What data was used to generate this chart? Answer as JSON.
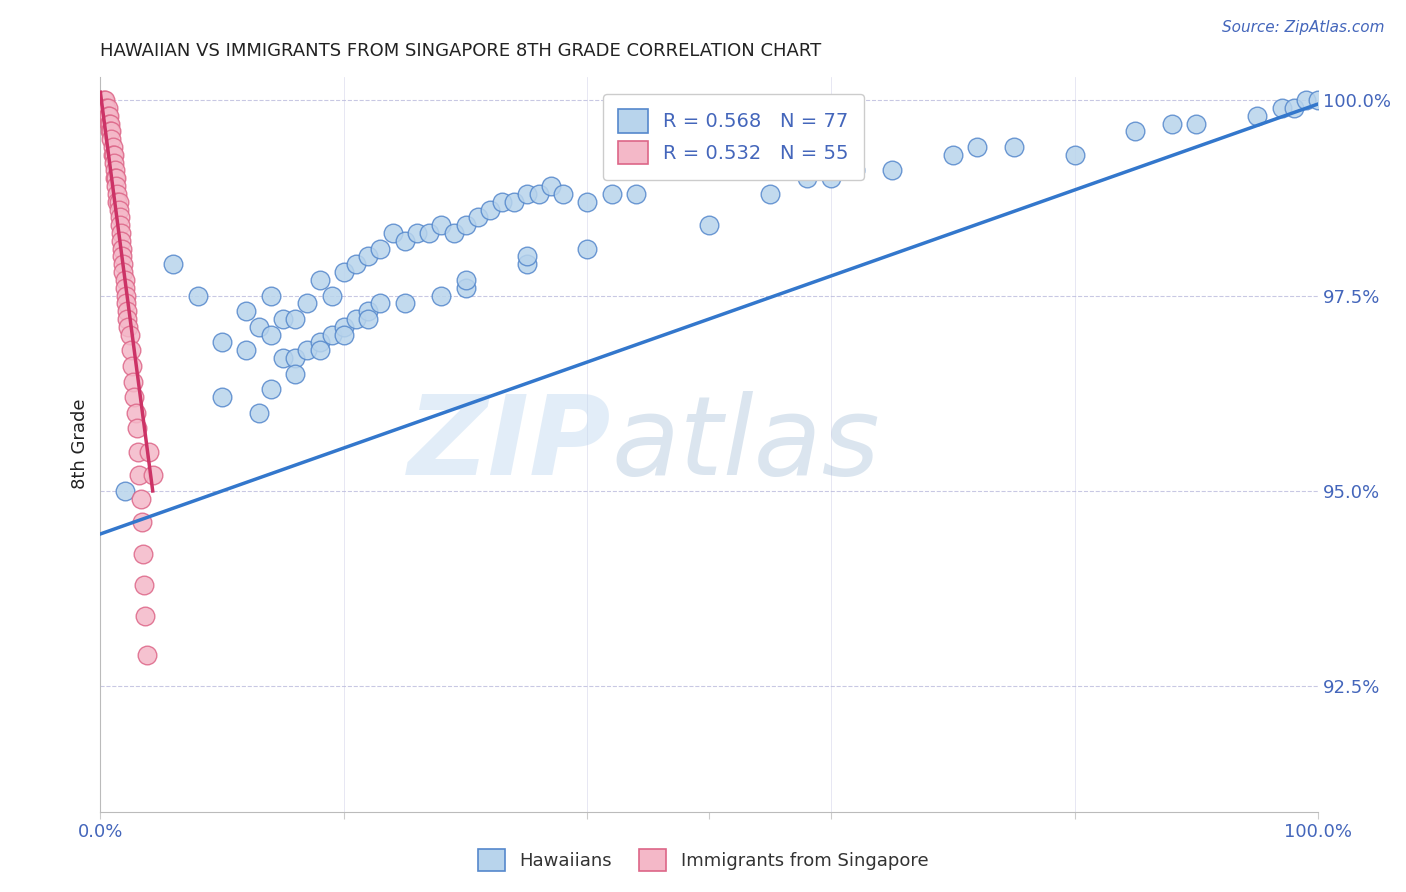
{
  "title": "HAWAIIAN VS IMMIGRANTS FROM SINGAPORE 8TH GRADE CORRELATION CHART",
  "source": "Source: ZipAtlas.com",
  "ylabel": "8th Grade",
  "watermark": "ZIPatlas",
  "legend_blue_r": "0.568",
  "legend_blue_n": "77",
  "legend_pink_r": "0.532",
  "legend_pink_n": "55",
  "legend_blue_label": "Hawaiians",
  "legend_pink_label": "Immigrants from Singapore",
  "blue_color": "#b8d4ec",
  "blue_edge": "#5588cc",
  "pink_color": "#f4b8c8",
  "pink_edge": "#dd6688",
  "trend_blue": "#3377cc",
  "trend_pink": "#cc3366",
  "axis_color": "#bbbbdd",
  "label_color": "#4466bb",
  "title_color": "#222222",
  "blue_scatter_x": [
    0.02,
    0.06,
    0.08,
    0.1,
    0.12,
    0.13,
    0.14,
    0.15,
    0.16,
    0.17,
    0.18,
    0.19,
    0.2,
    0.21,
    0.22,
    0.23,
    0.24,
    0.25,
    0.26,
    0.27,
    0.28,
    0.29,
    0.3,
    0.31,
    0.32,
    0.33,
    0.34,
    0.35,
    0.36,
    0.37,
    0.38,
    0.4,
    0.42,
    0.44,
    0.5,
    0.55,
    0.58,
    0.6,
    0.62,
    0.65,
    0.7,
    0.72,
    0.75,
    0.8,
    0.85,
    0.88,
    0.9,
    0.95,
    0.97,
    0.98,
    0.99,
    1.0,
    0.1,
    0.12,
    0.14,
    0.15,
    0.16,
    0.17,
    0.18,
    0.19,
    0.2,
    0.21,
    0.22,
    0.23,
    0.28,
    0.3,
    0.35,
    0.4,
    0.13,
    0.14,
    0.16,
    0.18,
    0.2,
    0.22,
    0.25,
    0.3,
    0.35
  ],
  "blue_scatter_y": [
    0.95,
    0.979,
    0.975,
    0.969,
    0.973,
    0.971,
    0.975,
    0.972,
    0.972,
    0.974,
    0.977,
    0.975,
    0.978,
    0.979,
    0.98,
    0.981,
    0.983,
    0.982,
    0.983,
    0.983,
    0.984,
    0.983,
    0.984,
    0.985,
    0.986,
    0.987,
    0.987,
    0.988,
    0.988,
    0.989,
    0.988,
    0.987,
    0.988,
    0.988,
    0.984,
    0.988,
    0.99,
    0.99,
    0.991,
    0.991,
    0.993,
    0.994,
    0.994,
    0.993,
    0.996,
    0.997,
    0.997,
    0.998,
    0.999,
    0.999,
    1.0,
    1.0,
    0.962,
    0.968,
    0.97,
    0.967,
    0.967,
    0.968,
    0.969,
    0.97,
    0.971,
    0.972,
    0.973,
    0.974,
    0.975,
    0.976,
    0.979,
    0.981,
    0.96,
    0.963,
    0.965,
    0.968,
    0.97,
    0.972,
    0.974,
    0.977,
    0.98
  ],
  "pink_scatter_x": [
    0.003,
    0.004,
    0.005,
    0.006,
    0.006,
    0.007,
    0.007,
    0.008,
    0.008,
    0.009,
    0.009,
    0.01,
    0.01,
    0.011,
    0.011,
    0.012,
    0.012,
    0.013,
    0.013,
    0.014,
    0.014,
    0.015,
    0.015,
    0.016,
    0.016,
    0.017,
    0.017,
    0.018,
    0.018,
    0.019,
    0.019,
    0.02,
    0.02,
    0.021,
    0.021,
    0.022,
    0.022,
    0.023,
    0.024,
    0.025,
    0.026,
    0.027,
    0.028,
    0.029,
    0.03,
    0.031,
    0.032,
    0.033,
    0.034,
    0.035,
    0.036,
    0.037,
    0.038,
    0.04,
    0.043
  ],
  "pink_scatter_y": [
    1.0,
    1.0,
    0.999,
    0.999,
    0.998,
    0.998,
    0.997,
    0.997,
    0.996,
    0.996,
    0.995,
    0.994,
    0.993,
    0.993,
    0.992,
    0.991,
    0.99,
    0.99,
    0.989,
    0.988,
    0.987,
    0.987,
    0.986,
    0.985,
    0.984,
    0.983,
    0.982,
    0.981,
    0.98,
    0.979,
    0.978,
    0.977,
    0.976,
    0.975,
    0.974,
    0.973,
    0.972,
    0.971,
    0.97,
    0.968,
    0.966,
    0.964,
    0.962,
    0.96,
    0.958,
    0.955,
    0.952,
    0.949,
    0.946,
    0.942,
    0.938,
    0.934,
    0.929,
    0.955,
    0.952
  ],
  "blue_trend_x": [
    0.0,
    1.0
  ],
  "blue_trend_y": [
    0.9445,
    0.9995
  ],
  "pink_trend_x": [
    0.0,
    0.043
  ],
  "pink_trend_y": [
    1.001,
    0.95
  ],
  "xlim": [
    0.0,
    1.0
  ],
  "ylim": [
    0.909,
    1.003
  ],
  "yticks": [
    0.925,
    0.95,
    0.975,
    1.0
  ],
  "ytick_labels": [
    "92.5%",
    "95.0%",
    "97.5%",
    "100.0%"
  ]
}
